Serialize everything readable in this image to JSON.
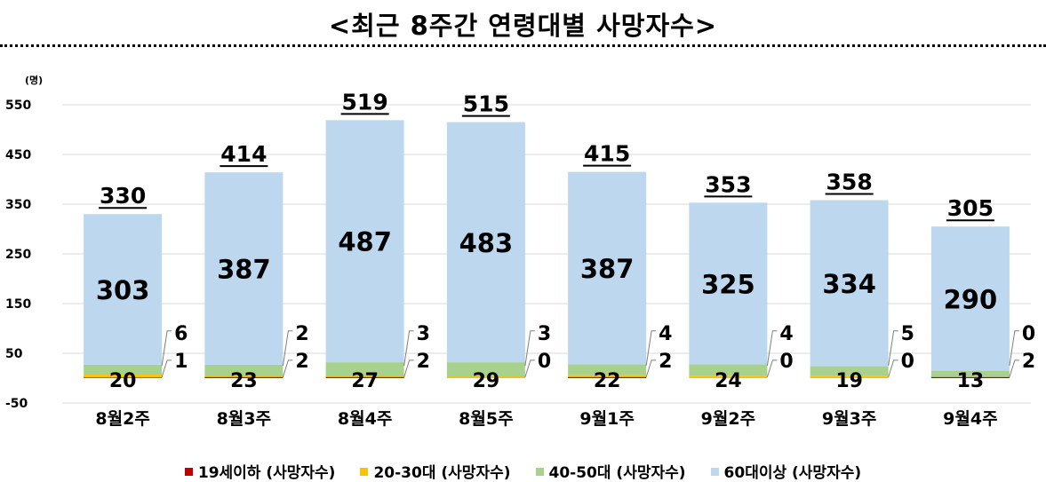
{
  "title": "<최근 8주간 연령대별 사망자수>",
  "chart_data": {
    "type": "bar",
    "stacked": true,
    "yunit": "(명)",
    "ylim": [
      -50,
      550
    ],
    "yticks": [
      -50,
      50,
      150,
      250,
      350,
      450,
      550
    ],
    "grid": true,
    "legend_position": "bottom",
    "categories": [
      "8월2주",
      "8월3주",
      "8월4주",
      "8월5주",
      "9월1주",
      "9월2주",
      "9월3주",
      "9월4주"
    ],
    "totals": [
      330,
      414,
      519,
      515,
      415,
      353,
      358,
      305
    ],
    "series": [
      {
        "name": "19세이하 (사망자수)",
        "color": "#C00000",
        "values": [
          1,
          2,
          2,
          0,
          2,
          0,
          0,
          2
        ]
      },
      {
        "name": "20-30대 (사망자수)",
        "color": "#FFC000",
        "values": [
          6,
          2,
          3,
          3,
          4,
          4,
          5,
          0
        ]
      },
      {
        "name": "40-50대 (사망자수)",
        "color": "#A9D18E",
        "values": [
          20,
          23,
          27,
          29,
          22,
          24,
          19,
          13
        ]
      },
      {
        "name": "60대이상 (사망자수)",
        "color": "#BDD7EE",
        "values": [
          303,
          387,
          487,
          483,
          387,
          325,
          334,
          290
        ]
      }
    ]
  }
}
